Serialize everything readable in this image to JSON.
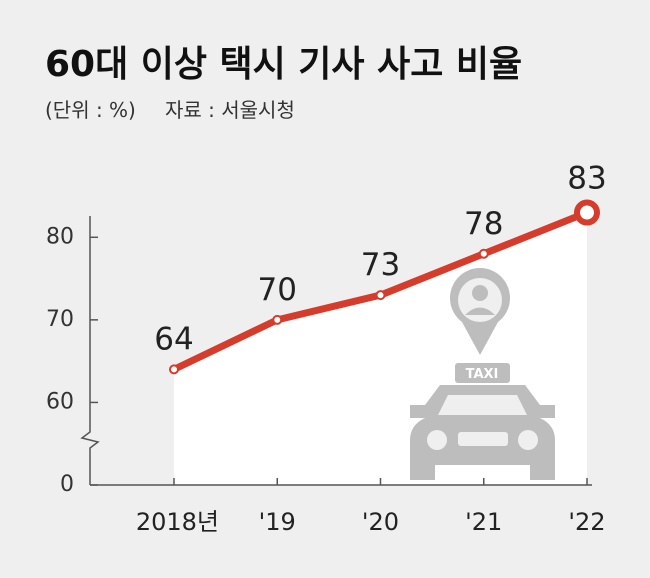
{
  "chart_data": {
    "type": "line",
    "title": "60대 이상 택시 기사 사고 비율",
    "subtitle": "(단위 : %)",
    "source": "자료 : 서울시청",
    "categories": [
      "2018년",
      "'19",
      "'20",
      "'21",
      "'22"
    ],
    "series": [
      {
        "name": "60대 이상 택시 기사 사고 비율",
        "color": "#d63c2b",
        "values": [
          64,
          70,
          73,
          78,
          83
        ]
      }
    ],
    "ylim": [
      0,
      85
    ],
    "yticks": [
      0,
      60,
      70,
      80
    ],
    "axis_break": true
  }
}
